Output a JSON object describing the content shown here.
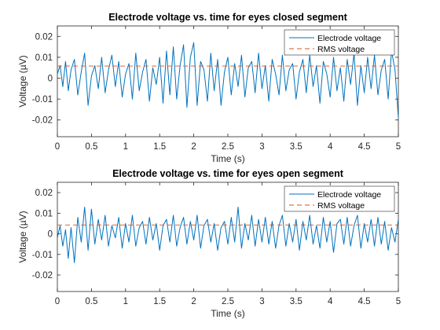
{
  "chart_data": [
    {
      "type": "line",
      "title": "Electrode voltage vs. time for eyes closed segment",
      "xlabel": "Time (s)",
      "ylabel": "Voltage (µV)",
      "xlim": [
        0,
        5
      ],
      "ylim": [
        -0.028,
        0.025
      ],
      "xticks": [
        0,
        0.5,
        1,
        1.5,
        2,
        2.5,
        3,
        3.5,
        4,
        4.5,
        5
      ],
      "yticks": [
        -0.02,
        -0.01,
        0,
        0.01,
        0.02
      ],
      "legend_position": "top-right",
      "grid": false,
      "series": [
        {
          "name": "Electrode voltage",
          "style": "solid",
          "color": "#0072BD",
          "x": [
            0,
            0.04,
            0.08,
            0.12,
            0.16,
            0.2,
            0.25,
            0.3,
            0.35,
            0.4,
            0.45,
            0.5,
            0.55,
            0.6,
            0.65,
            0.7,
            0.75,
            0.8,
            0.85,
            0.9,
            0.95,
            1.0,
            1.05,
            1.1,
            1.15,
            1.2,
            1.25,
            1.3,
            1.35,
            1.4,
            1.45,
            1.5,
            1.55,
            1.6,
            1.65,
            1.7,
            1.75,
            1.8,
            1.85,
            1.9,
            1.95,
            2.0,
            2.05,
            2.1,
            2.15,
            2.2,
            2.25,
            2.3,
            2.35,
            2.4,
            2.45,
            2.5,
            2.55,
            2.6,
            2.65,
            2.7,
            2.75,
            2.8,
            2.85,
            2.9,
            2.95,
            3.0,
            3.05,
            3.1,
            3.15,
            3.2,
            3.25,
            3.3,
            3.35,
            3.4,
            3.45,
            3.5,
            3.55,
            3.6,
            3.65,
            3.7,
            3.75,
            3.8,
            3.85,
            3.9,
            3.95,
            4.0,
            4.05,
            4.1,
            4.15,
            4.2,
            4.25,
            4.3,
            4.35,
            4.4,
            4.45,
            4.5,
            4.55,
            4.6,
            4.65,
            4.7,
            4.75,
            4.8,
            4.85,
            4.9,
            4.95,
            5.0
          ],
          "values": [
            0.002,
            0.006,
            -0.004,
            0.008,
            -0.006,
            0.004,
            0.009,
            -0.008,
            0.003,
            0.012,
            -0.013,
            0.001,
            0.006,
            -0.005,
            0.01,
            -0.007,
            0.004,
            0.011,
            -0.004,
            0.008,
            -0.009,
            0.002,
            0.007,
            -0.01,
            0.012,
            -0.006,
            0.003,
            0.009,
            -0.011,
            0.005,
            -0.003,
            0.01,
            -0.012,
            0.013,
            -0.008,
            0.015,
            -0.01,
            0.006,
            0.016,
            -0.014,
            0.01,
            0.017,
            -0.013,
            0.008,
            0.004,
            -0.011,
            0.012,
            -0.006,
            0.009,
            -0.013,
            0.003,
            0.01,
            -0.008,
            0.007,
            -0.004,
            0.011,
            -0.009,
            0.005,
            0.008,
            -0.007,
            0.012,
            -0.005,
            0.006,
            -0.011,
            0.009,
            0.002,
            -0.008,
            0.011,
            -0.006,
            0.004,
            0.007,
            -0.01,
            0.003,
            0.009,
            -0.007,
            0.011,
            -0.004,
            0.006,
            -0.012,
            0.008,
            0.002,
            -0.009,
            0.01,
            -0.006,
            0.005,
            -0.011,
            0.009,
            -0.003,
            0.012,
            -0.013,
            0.006,
            -0.007,
            0.01,
            -0.005,
            0.011,
            -0.008,
            0.004,
            0.009,
            -0.01,
            0.013,
            0.004,
            -0.019
          ]
        },
        {
          "name": "RMS voltage",
          "style": "dashed",
          "color": "#D95319",
          "x": [
            0,
            5
          ],
          "values": [
            0.0058,
            0.0058
          ]
        }
      ]
    },
    {
      "type": "line",
      "title": "Electrode voltage vs. time for eyes open segment",
      "xlabel": "Time (s)",
      "ylabel": "Voltage (µV)",
      "xlim": [
        0,
        5
      ],
      "ylim": [
        -0.028,
        0.025
      ],
      "xticks": [
        0,
        0.5,
        1,
        1.5,
        2,
        2.5,
        3,
        3.5,
        4,
        4.5,
        5
      ],
      "yticks": [
        -0.02,
        -0.01,
        0,
        0.01,
        0.02
      ],
      "legend_position": "top-right",
      "grid": false,
      "series": [
        {
          "name": "Electrode voltage",
          "style": "solid",
          "color": "#0072BD",
          "x": [
            0,
            0.04,
            0.08,
            0.12,
            0.16,
            0.2,
            0.25,
            0.3,
            0.35,
            0.4,
            0.45,
            0.5,
            0.55,
            0.6,
            0.65,
            0.7,
            0.75,
            0.8,
            0.85,
            0.9,
            0.95,
            1.0,
            1.05,
            1.1,
            1.15,
            1.2,
            1.25,
            1.3,
            1.35,
            1.4,
            1.45,
            1.5,
            1.55,
            1.6,
            1.65,
            1.7,
            1.75,
            1.8,
            1.85,
            1.9,
            1.95,
            2.0,
            2.05,
            2.1,
            2.15,
            2.2,
            2.25,
            2.3,
            2.35,
            2.4,
            2.45,
            2.5,
            2.55,
            2.6,
            2.65,
            2.7,
            2.75,
            2.8,
            2.85,
            2.9,
            2.95,
            3.0,
            3.05,
            3.1,
            3.15,
            3.2,
            3.25,
            3.3,
            3.35,
            3.4,
            3.45,
            3.5,
            3.55,
            3.6,
            3.65,
            3.7,
            3.75,
            3.8,
            3.85,
            3.9,
            3.95,
            4.0,
            4.05,
            4.1,
            4.15,
            4.2,
            4.25,
            4.3,
            4.35,
            4.4,
            4.45,
            4.5,
            4.55,
            4.6,
            4.65,
            4.7,
            4.75,
            4.8,
            4.85,
            4.9,
            4.95,
            5.0
          ],
          "values": [
            -0.002,
            0.004,
            -0.006,
            0.002,
            -0.012,
            0.003,
            -0.014,
            0.008,
            -0.004,
            0.013,
            -0.008,
            0.012,
            -0.005,
            0.007,
            -0.003,
            0.009,
            -0.006,
            0.004,
            -0.002,
            0.008,
            -0.007,
            0.005,
            -0.004,
            0.009,
            -0.006,
            0.003,
            0.006,
            -0.005,
            0.008,
            -0.003,
            0.005,
            -0.008,
            0.004,
            0.007,
            -0.004,
            0.009,
            -0.006,
            0.003,
            0.008,
            -0.005,
            0.006,
            -0.003,
            0.009,
            -0.007,
            0.004,
            0.007,
            -0.004,
            0.005,
            -0.008,
            0.003,
            0.006,
            -0.005,
            0.008,
            -0.004,
            0.013,
            -0.007,
            0.005,
            -0.003,
            0.009,
            -0.006,
            0.007,
            -0.004,
            0.008,
            -0.005,
            0.006,
            -0.007,
            0.004,
            0.009,
            -0.006,
            0.005,
            -0.004,
            0.007,
            -0.008,
            0.006,
            -0.003,
            0.009,
            -0.005,
            0.004,
            -0.007,
            0.008,
            -0.004,
            0.006,
            -0.009,
            0.005,
            0.007,
            -0.005,
            0.008,
            -0.006,
            0.004,
            0.009,
            -0.007,
            0.005,
            -0.004,
            0.007,
            -0.006,
            0.008,
            -0.005,
            0.006,
            -0.008,
            0.003,
            -0.004,
            0.007
          ]
        },
        {
          "name": "RMS voltage",
          "style": "dashed",
          "color": "#D95319",
          "x": [
            0,
            5
          ],
          "values": [
            0.0043,
            0.0043
          ]
        }
      ]
    }
  ]
}
